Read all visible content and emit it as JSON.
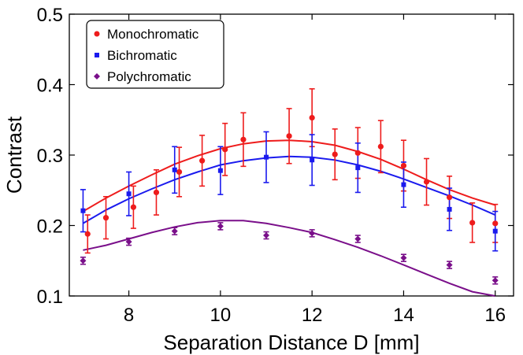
{
  "chart_data": {
    "type": "scatter",
    "title": "",
    "xlabel": "Separation Distance D [mm]",
    "ylabel": "Contrast",
    "xlim": [
      6.7,
      16.4
    ],
    "ylim": [
      0.1,
      0.5
    ],
    "xticks": [
      8,
      10,
      12,
      14,
      16
    ],
    "xtick_labels": [
      "8",
      "10",
      "12",
      "14",
      "16"
    ],
    "yticks": [
      0.1,
      0.2,
      0.3,
      0.4,
      0.5
    ],
    "ytick_labels": [
      "0.1",
      "0.2",
      "0.3",
      "0.4",
      "0.5"
    ],
    "grid": false,
    "legend_position": "top-left",
    "series": [
      {
        "name": "Monochromatic",
        "color": "#ee1c1c",
        "marker": "circle",
        "points": [
          {
            "x": 7.1,
            "y": 0.188,
            "err": 0.027
          },
          {
            "x": 7.5,
            "y": 0.211,
            "err": 0.03
          },
          {
            "x": 8.1,
            "y": 0.226,
            "err": 0.03
          },
          {
            "x": 8.6,
            "y": 0.247,
            "err": 0.032
          },
          {
            "x": 9.1,
            "y": 0.276,
            "err": 0.035
          },
          {
            "x": 9.6,
            "y": 0.292,
            "err": 0.036
          },
          {
            "x": 10.1,
            "y": 0.308,
            "err": 0.037
          },
          {
            "x": 10.5,
            "y": 0.322,
            "err": 0.038
          },
          {
            "x": 11.5,
            "y": 0.327,
            "err": 0.039
          },
          {
            "x": 12.0,
            "y": 0.353,
            "err": 0.041
          },
          {
            "x": 12.5,
            "y": 0.301,
            "err": 0.036
          },
          {
            "x": 13.0,
            "y": 0.303,
            "err": 0.036
          },
          {
            "x": 13.5,
            "y": 0.312,
            "err": 0.037
          },
          {
            "x": 14.0,
            "y": 0.285,
            "err": 0.036
          },
          {
            "x": 14.5,
            "y": 0.262,
            "err": 0.033
          },
          {
            "x": 15.0,
            "y": 0.24,
            "err": 0.03
          },
          {
            "x": 15.5,
            "y": 0.204,
            "err": 0.028
          },
          {
            "x": 16.0,
            "y": 0.203,
            "err": 0.027
          }
        ],
        "fit": {
          "x": [
            7.0,
            7.5,
            8.0,
            8.5,
            9.0,
            9.5,
            10.0,
            10.5,
            11.0,
            11.5,
            12.0,
            12.5,
            13.0,
            13.5,
            14.0,
            14.5,
            15.0,
            15.5,
            16.0
          ],
          "y": [
            0.22,
            0.239,
            0.256,
            0.272,
            0.287,
            0.299,
            0.309,
            0.316,
            0.32,
            0.321,
            0.319,
            0.314,
            0.305,
            0.294,
            0.28,
            0.265,
            0.251,
            0.239,
            0.229
          ]
        }
      },
      {
        "name": "Bichromatic",
        "color": "#1a1aee",
        "marker": "square",
        "points": [
          {
            "x": 7.0,
            "y": 0.221,
            "err": 0.03
          },
          {
            "x": 8.0,
            "y": 0.245,
            "err": 0.031
          },
          {
            "x": 9.0,
            "y": 0.279,
            "err": 0.033
          },
          {
            "x": 10.0,
            "y": 0.278,
            "err": 0.034
          },
          {
            "x": 11.0,
            "y": 0.297,
            "err": 0.036
          },
          {
            "x": 12.0,
            "y": 0.293,
            "err": 0.036
          },
          {
            "x": 13.0,
            "y": 0.282,
            "err": 0.035
          },
          {
            "x": 14.0,
            "y": 0.258,
            "err": 0.032
          },
          {
            "x": 15.0,
            "y": 0.223,
            "err": 0.03
          },
          {
            "x": 16.0,
            "y": 0.192,
            "err": 0.028
          }
        ],
        "fit": {
          "x": [
            7.0,
            7.5,
            8.0,
            8.5,
            9.0,
            9.5,
            10.0,
            10.5,
            11.0,
            11.5,
            12.0,
            12.5,
            13.0,
            13.5,
            14.0,
            14.5,
            15.0,
            15.5,
            16.0
          ],
          "y": [
            0.203,
            0.222,
            0.238,
            0.252,
            0.265,
            0.276,
            0.286,
            0.292,
            0.296,
            0.298,
            0.297,
            0.293,
            0.286,
            0.277,
            0.266,
            0.254,
            0.242,
            0.229,
            0.215
          ]
        }
      },
      {
        "name": "Polychromatic",
        "color": "#7a0f8a",
        "marker": "diamond",
        "points": [
          {
            "x": 7.0,
            "y": 0.15,
            "err": 0.005
          },
          {
            "x": 8.0,
            "y": 0.177,
            "err": 0.005
          },
          {
            "x": 9.0,
            "y": 0.192,
            "err": 0.005
          },
          {
            "x": 10.0,
            "y": 0.199,
            "err": 0.005
          },
          {
            "x": 11.0,
            "y": 0.186,
            "err": 0.005
          },
          {
            "x": 12.0,
            "y": 0.189,
            "err": 0.005
          },
          {
            "x": 13.0,
            "y": 0.181,
            "err": 0.005
          },
          {
            "x": 14.0,
            "y": 0.154,
            "err": 0.005
          },
          {
            "x": 15.0,
            "y": 0.144,
            "err": 0.005
          },
          {
            "x": 16.0,
            "y": 0.122,
            "err": 0.005
          }
        ],
        "fit": {
          "x": [
            7.0,
            7.5,
            8.0,
            8.5,
            9.0,
            9.5,
            10.0,
            10.5,
            11.0,
            11.5,
            12.0,
            12.5,
            13.0,
            13.5,
            14.0,
            14.5,
            15.0,
            15.5,
            16.0
          ],
          "y": [
            0.165,
            0.172,
            0.181,
            0.19,
            0.198,
            0.204,
            0.207,
            0.207,
            0.203,
            0.197,
            0.19,
            0.18,
            0.169,
            0.157,
            0.144,
            0.131,
            0.118,
            0.106,
            0.095
          ]
        }
      }
    ]
  }
}
